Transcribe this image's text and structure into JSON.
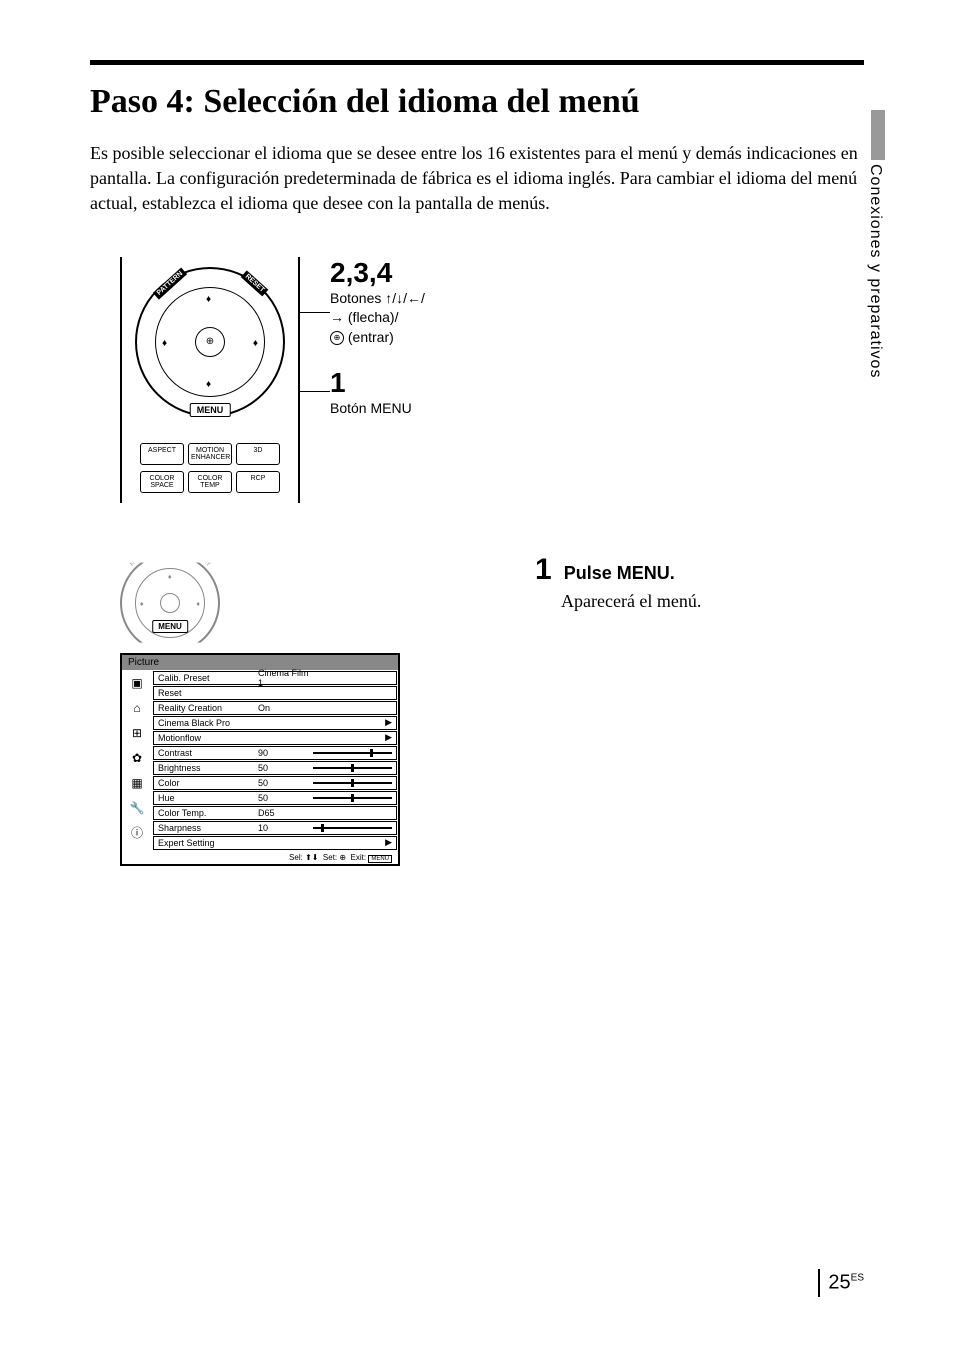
{
  "title": "Paso 4: Selección del idioma del menú",
  "intro": "Es posible seleccionar el idioma que se desee entre los 16 existentes para el menú y demás indicaciones en pantalla. La configuración predeterminada de fábrica es el idioma inglés. Para cambiar el idioma del menú actual, establezca el idioma que desee con la pantalla de menús.",
  "side_tab": "Conexiones y preparativos",
  "remote": {
    "pattern": "PATTERN",
    "reset": "RESET",
    "menu": "MENU",
    "buttons_row1": [
      "ASPECT",
      "MOTION ENHANCER",
      "3D"
    ],
    "buttons_row2": [
      "COLOR SPACE",
      "COLOR TEMP",
      "RCP"
    ]
  },
  "callout_234": {
    "num": "2,3,4",
    "line1": "Botones ↑/↓/←/",
    "line2": "→ (flecha)/",
    "line3": " (entrar)"
  },
  "callout_1": {
    "num": "1",
    "text": "Botón  MENU"
  },
  "step1": {
    "num": "1",
    "title": "Pulse MENU.",
    "desc": "Aparecerá el menú."
  },
  "menu_panel": {
    "header": "Picture",
    "rows": [
      {
        "label": "Calib. Preset",
        "value": "Cinema Film 1",
        "type": "text"
      },
      {
        "label": "Reset",
        "value": "",
        "type": "text"
      },
      {
        "label": "Reality Creation",
        "value": "On",
        "type": "text"
      },
      {
        "label": "Cinema Black Pro",
        "value": "",
        "type": "chevron"
      },
      {
        "label": "Motionflow",
        "value": "",
        "type": "chevron"
      },
      {
        "label": "Contrast",
        "value": "90",
        "type": "slider",
        "pos": 72
      },
      {
        "label": "Brightness",
        "value": "50",
        "type": "slider",
        "pos": 48
      },
      {
        "label": "Color",
        "value": "50",
        "type": "slider",
        "pos": 48
      },
      {
        "label": "Hue",
        "value": "50",
        "type": "slider",
        "pos": 48
      },
      {
        "label": "Color Temp.",
        "value": "D65",
        "type": "text"
      },
      {
        "label": "Sharpness",
        "value": "10",
        "type": "slider",
        "pos": 10
      },
      {
        "label": "Expert Setting",
        "value": "",
        "type": "chevron"
      }
    ],
    "footer_sel": "Sel:",
    "footer_set": "Set:",
    "footer_exit": "Exit:",
    "footer_menu": "MENU"
  },
  "page_num": "25",
  "page_lang": "ES"
}
